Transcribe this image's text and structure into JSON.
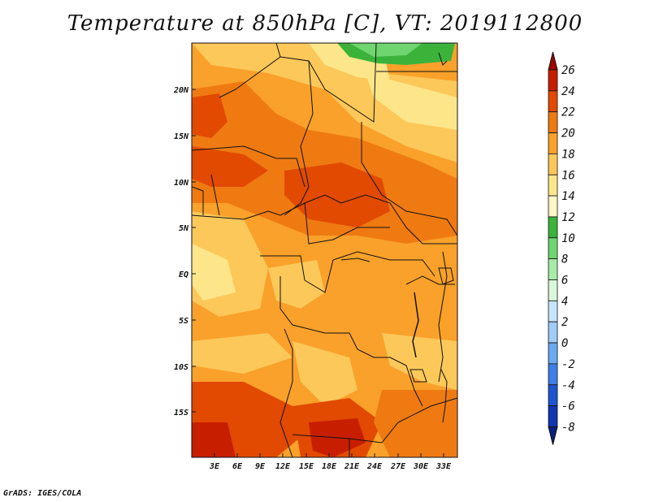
{
  "title": "Temperature at 850hPa [C], VT: 2019112800",
  "credit": "GrADS: IGES/COLA",
  "map": {
    "lat_labels": [
      "20N",
      "15N",
      "10N",
      "5N",
      "EQ",
      "5S",
      "10S",
      "15S"
    ],
    "lon_labels": [
      "3E",
      "6E",
      "9E",
      "12E",
      "15E",
      "18E",
      "21E",
      "24E",
      "27E",
      "30E",
      "33E"
    ]
  },
  "colorbar": {
    "levels": [
      "26",
      "24",
      "22",
      "20",
      "18",
      "16",
      "14",
      "12",
      "10",
      "8",
      "6",
      "4",
      "2",
      "0",
      "-2",
      "-4",
      "-6",
      "-8"
    ],
    "colors": [
      "#a00000",
      "#c81e00",
      "#e14a00",
      "#ef7a12",
      "#f9a12a",
      "#fcc85a",
      "#fde68a",
      "#fef6c4",
      "#3bb33b",
      "#6fd66f",
      "#a6eca6",
      "#d9f7d9",
      "#c6e4fb",
      "#9fcdf7",
      "#6aaaf0",
      "#3d7fe6",
      "#1f55cf",
      "#0f36b0",
      "#0a1f80"
    ]
  }
}
